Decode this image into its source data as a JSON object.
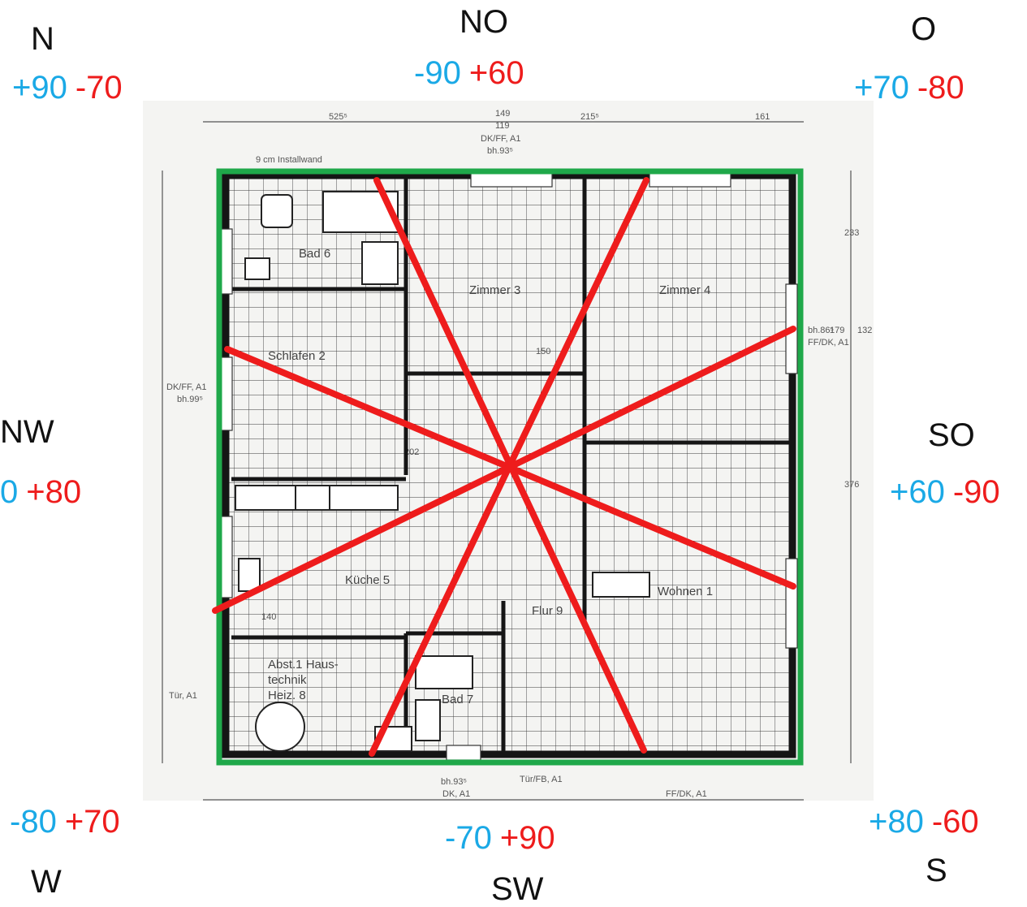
{
  "colors": {
    "negative_blue": "#1aa9e6",
    "positive_red": "#ee1c1c",
    "outline_green": "#1fa84a",
    "rays_red": "#ee1c1c"
  },
  "directions": [
    {
      "key": "n",
      "label": "N",
      "blue": "+90",
      "red": "-70"
    },
    {
      "key": "no",
      "label": "NO",
      "blue": "-90",
      "red": "+60"
    },
    {
      "key": "o",
      "label": "O",
      "blue": "+70",
      "red": "-80"
    },
    {
      "key": "so",
      "label": "SO",
      "blue": "+60",
      "red": "-90"
    },
    {
      "key": "s",
      "label": "S",
      "blue": "+80",
      "red": "-60"
    },
    {
      "key": "sw",
      "label": "SW",
      "blue": "-70",
      "red": "+90"
    },
    {
      "key": "w",
      "label": "W",
      "blue": "-80",
      "red": "+70"
    },
    {
      "key": "nw",
      "label": "NW",
      "blue": "0",
      "red": "+80"
    }
  ],
  "rooms": [
    {
      "label": "Bad 6"
    },
    {
      "label": "Zimmer 3"
    },
    {
      "label": "Zimmer 4"
    },
    {
      "label": "Schlafen 2"
    },
    {
      "label": "Küche 5"
    },
    {
      "label": "Wohnen 1"
    },
    {
      "label": "Flur 9"
    },
    {
      "label": "Bad 7"
    },
    {
      "label": "Abst.1 Haus-"
    },
    {
      "label": "technik"
    },
    {
      "label": "Heiz. 8"
    }
  ],
  "plan_annotations": [
    {
      "text": "9 cm Installwand"
    },
    {
      "text": "149"
    },
    {
      "text": "119"
    },
    {
      "text": "DK/FF, A1"
    },
    {
      "text": "bh.93⁵"
    },
    {
      "text": "215⁵"
    },
    {
      "text": "161"
    },
    {
      "text": "525⁵"
    },
    {
      "text": "bh.86⁵"
    },
    {
      "text": "FF/DK, A1"
    },
    {
      "text": "DK/FF, A1"
    },
    {
      "text": "bh.99⁵"
    },
    {
      "text": "bh.93⁵"
    },
    {
      "text": "DK, A1"
    },
    {
      "text": "Tür/FB, A1"
    },
    {
      "text": "FF/DK, A1"
    },
    {
      "text": "Tür, A1"
    },
    {
      "text": "202"
    },
    {
      "text": "150"
    },
    {
      "text": "140"
    },
    {
      "text": "376"
    },
    {
      "text": "233"
    },
    {
      "text": "179"
    },
    {
      "text": "132"
    }
  ]
}
